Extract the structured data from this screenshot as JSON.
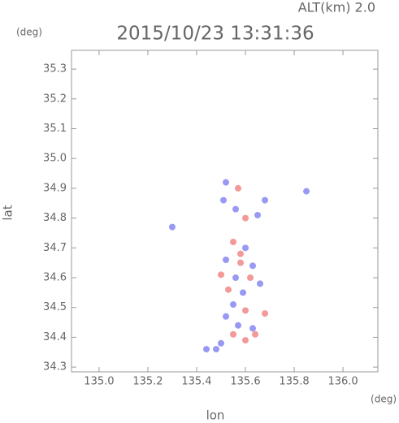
{
  "chart_data": {
    "type": "scatter",
    "title": "2015/10/23 13:31:36",
    "altitude_label": "ALT(km) 2.0",
    "y_unit": "(deg)",
    "x_unit": "(deg)",
    "xlabel": "lon",
    "ylabel": "lat",
    "xlim": [
      134.887,
      136.143
    ],
    "ylim": [
      34.284,
      35.363
    ],
    "xticks": [
      {
        "value": 135,
        "label": "135.0"
      },
      135.2,
      135.4,
      135.6,
      135.8,
      {
        "value": 136,
        "label": "136.0"
      }
    ],
    "yticks": [
      34.3,
      34.4,
      34.5,
      34.6,
      34.7,
      34.8,
      34.9,
      {
        "value": 35,
        "label": "35.0"
      },
      35.1,
      35.2,
      35.3
    ],
    "x": [
      135.52,
      135.57,
      135.51,
      135.56,
      135.6,
      135.65,
      135.68,
      135.85,
      135.3,
      135.55,
      135.6,
      135.52,
      135.58,
      135.63,
      135.5,
      135.56,
      135.62,
      135.53,
      135.59,
      135.66,
      135.55,
      135.6,
      135.68,
      135.52,
      135.57,
      135.63,
      135.55,
      135.6,
      135.5,
      135.44,
      135.48,
      135.64,
      135.58
    ],
    "y": [
      34.92,
      34.9,
      34.86,
      34.83,
      34.8,
      34.81,
      34.86,
      34.89,
      34.77,
      34.72,
      34.7,
      34.66,
      34.65,
      34.64,
      34.61,
      34.6,
      34.6,
      34.56,
      34.55,
      34.58,
      34.51,
      34.49,
      34.48,
      34.47,
      34.44,
      34.43,
      34.41,
      34.39,
      34.38,
      34.36,
      34.36,
      34.41,
      34.68
    ],
    "point_colors": [
      "#8080f0",
      "#f08080",
      "#8080f0",
      "#8080f0",
      "#f08080",
      "#8080f0",
      "#8080f0",
      "#8080f0",
      "#8080f0",
      "#f08080",
      "#8080f0",
      "#8080f0",
      "#f08080",
      "#8080f0",
      "#f08080",
      "#8080f0",
      "#f08080",
      "#f08080",
      "#8080f0",
      "#8080f0",
      "#8080f0",
      "#f08080",
      "#f08080",
      "#8080f0",
      "#8080f0",
      "#8080f0",
      "#f08080",
      "#f08080",
      "#8080f0",
      "#8080f0",
      "#8080f0",
      "#f08080",
      "#f08080"
    ]
  }
}
